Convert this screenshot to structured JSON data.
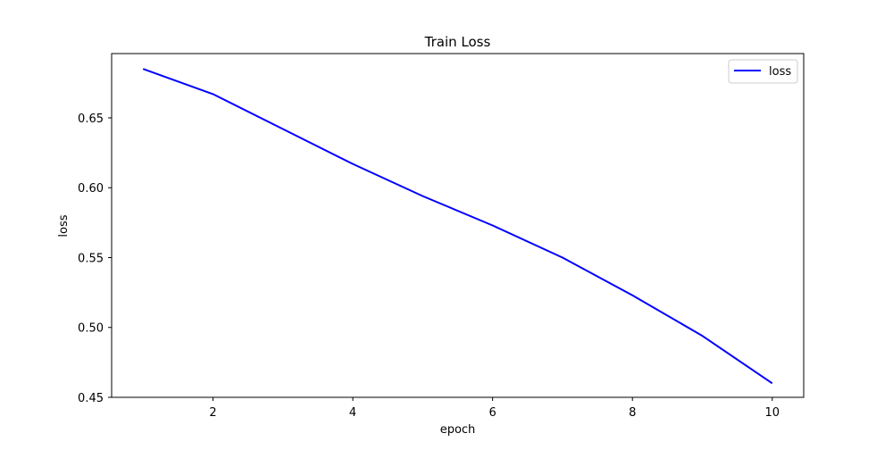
{
  "chart_data": {
    "type": "line",
    "title": "Train Loss",
    "xlabel": "epoch",
    "ylabel": "loss",
    "x": [
      1,
      2,
      3,
      4,
      5,
      6,
      7,
      8,
      9,
      10
    ],
    "series": [
      {
        "name": "loss",
        "color": "#0000ff",
        "values": [
          0.685,
          0.667,
          0.642,
          0.617,
          0.594,
          0.573,
          0.55,
          0.523,
          0.494,
          0.46
        ]
      }
    ],
    "xlim": [
      0.55,
      10.45
    ],
    "ylim": [
      0.45,
      0.696
    ],
    "xticks": [
      2,
      4,
      6,
      8,
      10
    ],
    "xtick_labels": [
      "2",
      "4",
      "6",
      "8",
      "10"
    ],
    "yticks": [
      0.45,
      0.5,
      0.55,
      0.6,
      0.65
    ],
    "ytick_labels": [
      "0.45",
      "0.50",
      "0.55",
      "0.60",
      "0.65"
    ],
    "grid": false,
    "legend_position": "top-right"
  }
}
